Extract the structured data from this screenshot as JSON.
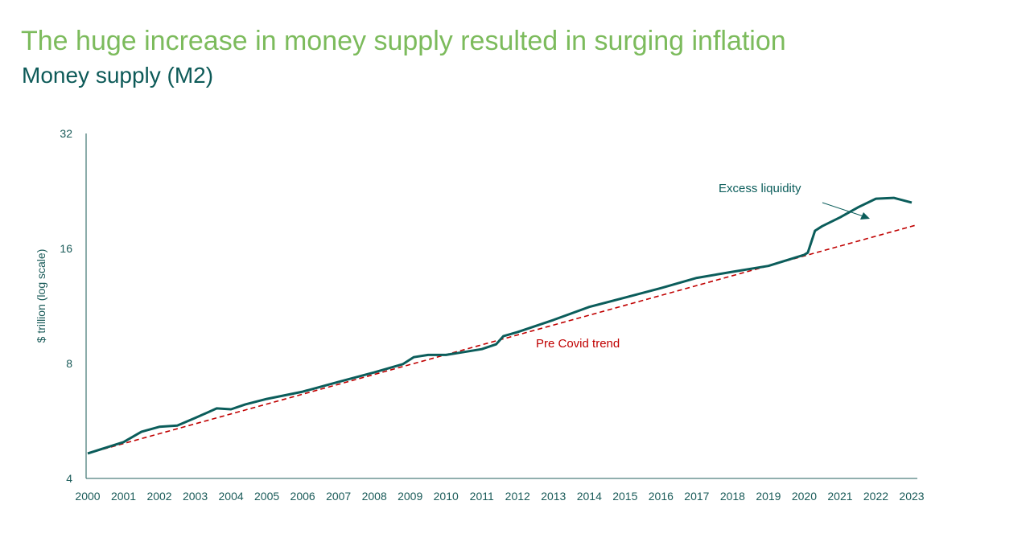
{
  "header": {
    "title": "The huge increase in money supply resulted in surging inflation",
    "subtitle": "Money supply (M2)"
  },
  "chart_data": {
    "type": "line",
    "title": "Money supply (M2)",
    "ylabel": "$ trillion (log scale)",
    "xlabel": "",
    "y_scale": "log2",
    "ylim": [
      4,
      32
    ],
    "yticks": [
      "4",
      "8",
      "16",
      "32"
    ],
    "xlim": [
      2000,
      2023
    ],
    "xticks": [
      "2000",
      "2001",
      "2002",
      "2003",
      "2004",
      "2005",
      "2006",
      "2007",
      "2008",
      "2009",
      "2010",
      "2011",
      "2012",
      "2013",
      "2014",
      "2015",
      "2016",
      "2017",
      "2018",
      "2019",
      "2020",
      "2021",
      "2022",
      "2023"
    ],
    "grid": false,
    "series": [
      {
        "name": "M2",
        "color": "#0b5d5b",
        "style": "solid",
        "points": [
          [
            2000,
            4.65
          ],
          [
            2001,
            4.98
          ],
          [
            2001.5,
            5.3
          ],
          [
            2002,
            5.46
          ],
          [
            2002.5,
            5.5
          ],
          [
            2003,
            5.76
          ],
          [
            2003.6,
            6.1
          ],
          [
            2004,
            6.07
          ],
          [
            2004.4,
            6.25
          ],
          [
            2005,
            6.46
          ],
          [
            2006,
            6.75
          ],
          [
            2007,
            7.16
          ],
          [
            2008,
            7.58
          ],
          [
            2008.8,
            7.97
          ],
          [
            2009.1,
            8.31
          ],
          [
            2009.5,
            8.42
          ],
          [
            2010,
            8.42
          ],
          [
            2010.5,
            8.57
          ],
          [
            2011,
            8.72
          ],
          [
            2011.4,
            8.98
          ],
          [
            2011.6,
            9.43
          ],
          [
            2012,
            9.67
          ],
          [
            2013,
            10.4
          ],
          [
            2014,
            11.25
          ],
          [
            2015,
            11.9
          ],
          [
            2016,
            12.6
          ],
          [
            2017,
            13.4
          ],
          [
            2018,
            13.9
          ],
          [
            2019,
            14.4
          ],
          [
            2020,
            15.4
          ],
          [
            2020.1,
            15.6
          ],
          [
            2020.3,
            17.8
          ],
          [
            2020.5,
            18.3
          ],
          [
            2021,
            19.3
          ],
          [
            2021.5,
            20.5
          ],
          [
            2022,
            21.6
          ],
          [
            2022.5,
            21.7
          ],
          [
            2023,
            21.1
          ]
        ]
      },
      {
        "name": "Pre Covid trend",
        "color": "#c00000",
        "style": "dashed",
        "points": [
          [
            2000,
            4.65
          ],
          [
            2023.1,
            18.4
          ]
        ]
      }
    ],
    "annotations": [
      {
        "text": "Excess liquidity",
        "color": "#0b5d5b"
      },
      {
        "text": "Pre Covid trend",
        "color": "#c00000"
      }
    ]
  }
}
